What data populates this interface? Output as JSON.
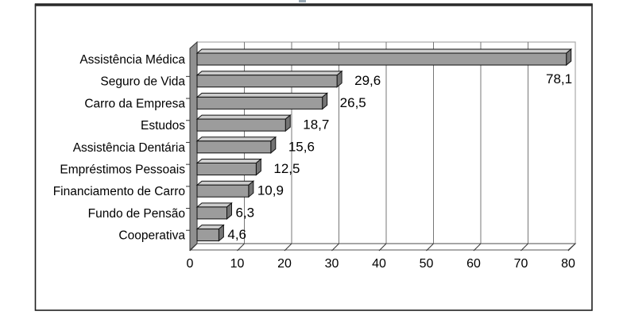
{
  "figure": {
    "background": "#ffffff",
    "frame_color": "#1f1f1f",
    "artifact_color": "#9aaab6"
  },
  "chart_data": {
    "type": "bar",
    "orientation": "horizontal",
    "style": "3d-bar",
    "title": "",
    "xlabel": "",
    "ylabel": "",
    "categories": [
      "Assistência Médica",
      "Seguro de Vida",
      "Carro da Empresa",
      "Estudos",
      "Assistência Dentária",
      "Empréstimos Pessoais",
      "Financiamento de Carro",
      "Fundo de Pensão",
      "Cooperativa"
    ],
    "values": [
      78.1,
      29.6,
      26.5,
      18.7,
      15.6,
      12.5,
      10.9,
      6.3,
      4.6
    ],
    "value_labels": [
      "78,1",
      "29,6",
      "26,5",
      "18,7",
      "15,6",
      "12,5",
      "10,9",
      "6,3",
      "4,6"
    ],
    "x_ticks": [
      "0",
      "10",
      "20",
      "30",
      "40",
      "50",
      "60",
      "70",
      "80"
    ],
    "xlim": [
      0,
      80
    ],
    "grid": true,
    "legend": false,
    "colors": {
      "bar_face": "#9c9c9c",
      "bar_top": "#cccccc",
      "bar_end": "#747474",
      "outline": "#111111",
      "wall": "#909090",
      "wall_edge": "#333333",
      "floor": "#ffffff",
      "floor_edge": "#555555",
      "gridline": "#777777",
      "plot_border": "#aaaaaa",
      "text": "#000000"
    }
  }
}
